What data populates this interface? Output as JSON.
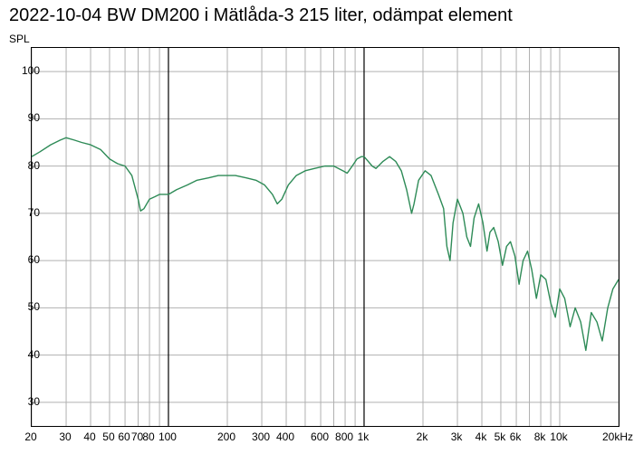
{
  "title": "2022-10-04 BW DM200 i Mätlåda-3 215 liter, odämpat element",
  "ylabel": "SPL",
  "chart": {
    "type": "line",
    "background_color": "#ffffff",
    "border_color": "#000000",
    "grid_color_major": "#000000",
    "grid_color_minor": "#b0b0b0",
    "line_color": "#2e8b57",
    "line_width": 1.4,
    "title_fontsize": 20,
    "axis_fontsize": 12,
    "x_scale": "log",
    "xlim": [
      20,
      20000
    ],
    "ylim": [
      25,
      105
    ],
    "y_ticks": [
      30,
      40,
      50,
      60,
      70,
      80,
      90,
      100
    ],
    "x_major_ticks": [
      100,
      1000
    ],
    "x_minor_ticks": [
      20,
      30,
      40,
      50,
      60,
      70,
      80,
      90,
      200,
      300,
      400,
      500,
      600,
      700,
      800,
      900,
      2000,
      3000,
      4000,
      5000,
      6000,
      7000,
      8000,
      9000,
      10000,
      20000
    ],
    "x_tick_labels": [
      {
        "f": 20,
        "label": "20"
      },
      {
        "f": 30,
        "label": "30"
      },
      {
        "f": 40,
        "label": "40"
      },
      {
        "f": 50,
        "label": "50"
      },
      {
        "f": 60,
        "label": "60"
      },
      {
        "f": 70,
        "label": "70"
      },
      {
        "f": 80,
        "label": "80"
      },
      {
        "f": 100,
        "label": "100"
      },
      {
        "f": 200,
        "label": "200"
      },
      {
        "f": 300,
        "label": "300"
      },
      {
        "f": 400,
        "label": "400"
      },
      {
        "f": 600,
        "label": "600"
      },
      {
        "f": 800,
        "label": "800"
      },
      {
        "f": 1000,
        "label": "1k"
      },
      {
        "f": 2000,
        "label": "2k"
      },
      {
        "f": 3000,
        "label": "3k"
      },
      {
        "f": 4000,
        "label": "4k"
      },
      {
        "f": 5000,
        "label": "5k"
      },
      {
        "f": 6000,
        "label": "6k"
      },
      {
        "f": 8000,
        "label": "8k"
      },
      {
        "f": 10000,
        "label": "10k"
      },
      {
        "f": 20000,
        "label": "20kHz"
      }
    ],
    "series": [
      {
        "name": "SPL",
        "color": "#2e8b57",
        "points": [
          [
            20,
            82
          ],
          [
            22,
            83
          ],
          [
            25,
            84.5
          ],
          [
            28,
            85.5
          ],
          [
            30,
            86
          ],
          [
            33,
            85.5
          ],
          [
            36,
            85
          ],
          [
            40,
            84.5
          ],
          [
            45,
            83.5
          ],
          [
            50,
            81.5
          ],
          [
            55,
            80.5
          ],
          [
            60,
            80
          ],
          [
            65,
            78
          ],
          [
            70,
            73
          ],
          [
            72,
            70.5
          ],
          [
            75,
            71
          ],
          [
            80,
            73
          ],
          [
            85,
            73.5
          ],
          [
            90,
            74
          ],
          [
            100,
            74
          ],
          [
            110,
            75
          ],
          [
            125,
            76
          ],
          [
            140,
            77
          ],
          [
            160,
            77.5
          ],
          [
            180,
            78
          ],
          [
            200,
            78
          ],
          [
            220,
            78
          ],
          [
            250,
            77.5
          ],
          [
            280,
            77
          ],
          [
            310,
            76
          ],
          [
            340,
            74
          ],
          [
            360,
            72
          ],
          [
            380,
            73
          ],
          [
            410,
            76
          ],
          [
            450,
            78
          ],
          [
            500,
            79
          ],
          [
            560,
            79.5
          ],
          [
            630,
            80
          ],
          [
            700,
            80
          ],
          [
            780,
            79
          ],
          [
            820,
            78.5
          ],
          [
            870,
            80
          ],
          [
            920,
            81.5
          ],
          [
            970,
            82
          ],
          [
            1000,
            82
          ],
          [
            1050,
            81
          ],
          [
            1100,
            80
          ],
          [
            1150,
            79.5
          ],
          [
            1250,
            81
          ],
          [
            1350,
            82
          ],
          [
            1450,
            81
          ],
          [
            1550,
            79
          ],
          [
            1650,
            75
          ],
          [
            1750,
            70
          ],
          [
            1800,
            72
          ],
          [
            1900,
            77
          ],
          [
            2050,
            79
          ],
          [
            2200,
            78
          ],
          [
            2400,
            74
          ],
          [
            2550,
            71
          ],
          [
            2650,
            63
          ],
          [
            2750,
            60
          ],
          [
            2850,
            68
          ],
          [
            3000,
            73
          ],
          [
            3200,
            70
          ],
          [
            3350,
            65
          ],
          [
            3500,
            63
          ],
          [
            3650,
            69
          ],
          [
            3850,
            72
          ],
          [
            4050,
            68
          ],
          [
            4250,
            62
          ],
          [
            4400,
            66
          ],
          [
            4600,
            67
          ],
          [
            4850,
            64
          ],
          [
            5100,
            59
          ],
          [
            5350,
            63
          ],
          [
            5600,
            64
          ],
          [
            5900,
            61
          ],
          [
            6200,
            55
          ],
          [
            6500,
            60
          ],
          [
            6850,
            62
          ],
          [
            7200,
            58
          ],
          [
            7600,
            52
          ],
          [
            8000,
            57
          ],
          [
            8500,
            56
          ],
          [
            9000,
            51
          ],
          [
            9500,
            48
          ],
          [
            10000,
            54
          ],
          [
            10600,
            52
          ],
          [
            11300,
            46
          ],
          [
            12000,
            50
          ],
          [
            12800,
            47
          ],
          [
            13600,
            41
          ],
          [
            14500,
            49
          ],
          [
            15500,
            47
          ],
          [
            16500,
            43
          ],
          [
            17600,
            50
          ],
          [
            18700,
            54
          ],
          [
            20000,
            56
          ]
        ]
      }
    ]
  }
}
